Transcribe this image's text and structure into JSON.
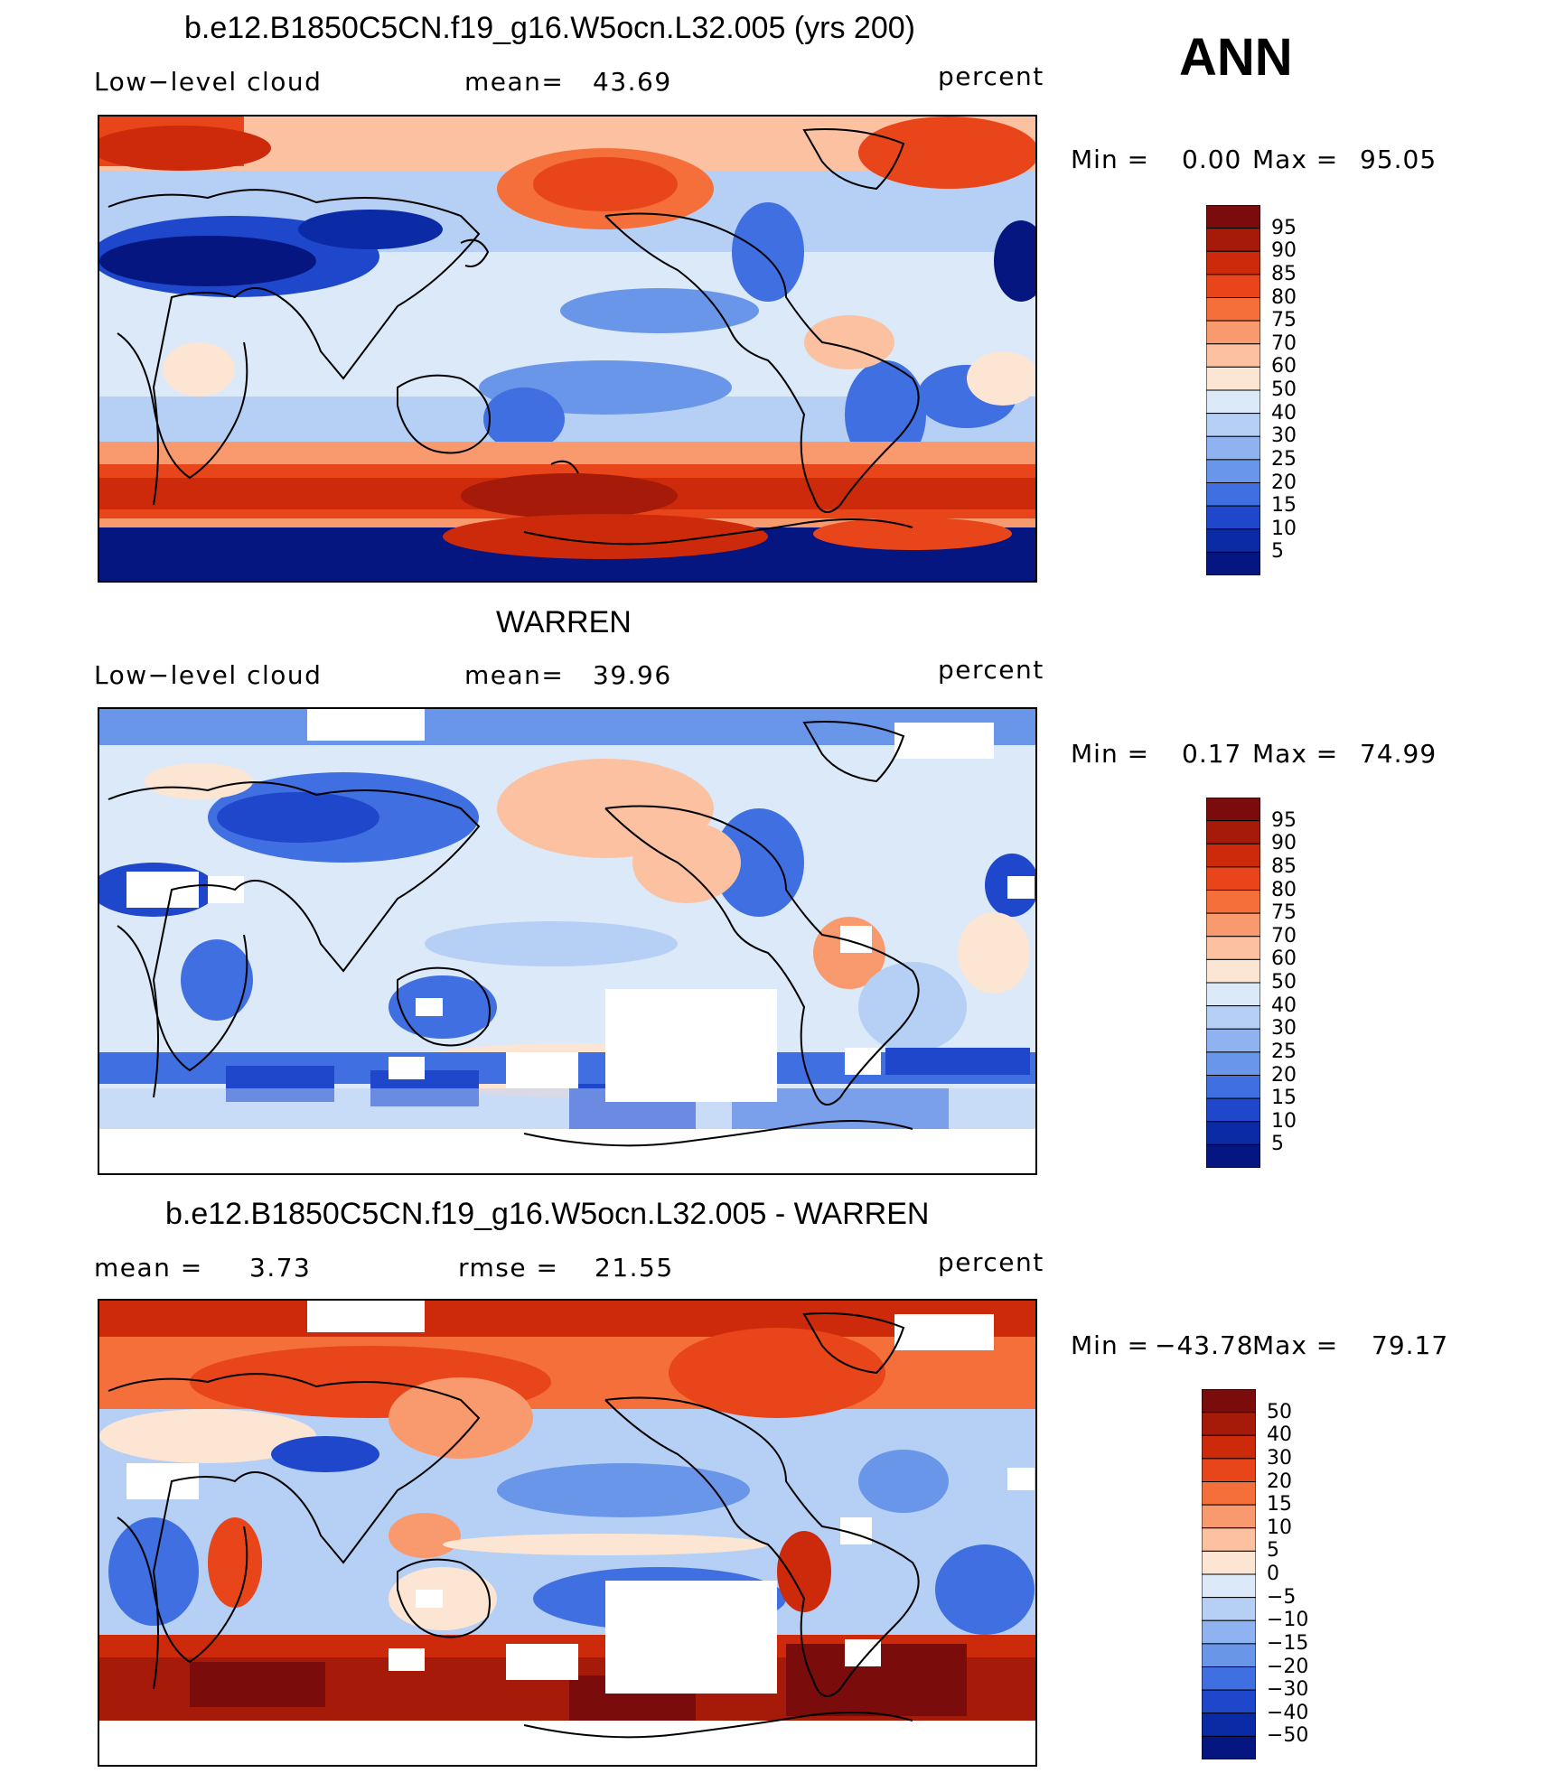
{
  "season": "ANN",
  "panels": [
    {
      "id": "model",
      "title": "b.e12.B1850C5CN.f19_g16.W5ocn.L32.005 (yrs 200)",
      "left_label": "Low−level cloud",
      "mid_label": "mean=",
      "mid_value": "43.69",
      "units": "percent",
      "min_label": "Min  =",
      "min_value": "0.00",
      "max_label": "Max  =",
      "max_value": "95.05",
      "colorbar": {
        "labels": [
          "95",
          "90",
          "85",
          "80",
          "75",
          "70",
          "60",
          "50",
          "40",
          "30",
          "25",
          "20",
          "15",
          "10",
          "5"
        ],
        "colors": [
          "#7a0c0c",
          "#a61a0a",
          "#cc2a0a",
          "#e8451a",
          "#f56f3a",
          "#f99a6e",
          "#fbc1a1",
          "#fde5d4",
          "#dbe9f9",
          "#b6cff5",
          "#8fb3f0",
          "#6a96ea",
          "#3f6fe0",
          "#1e47cc",
          "#0a2aa6",
          "#051680"
        ]
      }
    },
    {
      "id": "obs",
      "title": "WARREN",
      "left_label": "Low−level cloud",
      "mid_label": "mean=",
      "mid_value": "39.96",
      "units": "percent",
      "min_label": "Min  =",
      "min_value": "0.17",
      "max_label": "Max  =",
      "max_value": "74.99",
      "colorbar": {
        "labels": [
          "95",
          "90",
          "85",
          "80",
          "75",
          "70",
          "60",
          "50",
          "40",
          "30",
          "25",
          "20",
          "15",
          "10",
          "5"
        ],
        "colors": [
          "#7a0c0c",
          "#a61a0a",
          "#cc2a0a",
          "#e8451a",
          "#f56f3a",
          "#f99a6e",
          "#fbc1a1",
          "#fde5d4",
          "#dbe9f9",
          "#b6cff5",
          "#8fb3f0",
          "#6a96ea",
          "#3f6fe0",
          "#1e47cc",
          "#0a2aa6",
          "#051680"
        ]
      }
    },
    {
      "id": "diff",
      "title": "b.e12.B1850C5CN.f19_g16.W5ocn.L32.005 - WARREN",
      "left_label": "mean =",
      "left_value": "3.73",
      "mid_label": "rmse =",
      "mid_value": "21.55",
      "units": "percent",
      "min_label": "Min  =",
      "min_value": "−43.78",
      "max_label": "Max  =",
      "max_value": "79.17",
      "colorbar": {
        "labels": [
          "50",
          "40",
          "30",
          "20",
          "15",
          "10",
          "5",
          "0",
          "−5",
          "−10",
          "−15",
          "−20",
          "−30",
          "−40",
          "−50"
        ],
        "colors": [
          "#7a0c0c",
          "#a61a0a",
          "#cc2a0a",
          "#e8451a",
          "#f56f3a",
          "#f99a6e",
          "#fbc1a1",
          "#fde5d4",
          "#dbe9f9",
          "#b6cff5",
          "#8fb3f0",
          "#6a96ea",
          "#3f6fe0",
          "#1e47cc",
          "#0a2aa6",
          "#051680"
        ]
      }
    }
  ]
}
